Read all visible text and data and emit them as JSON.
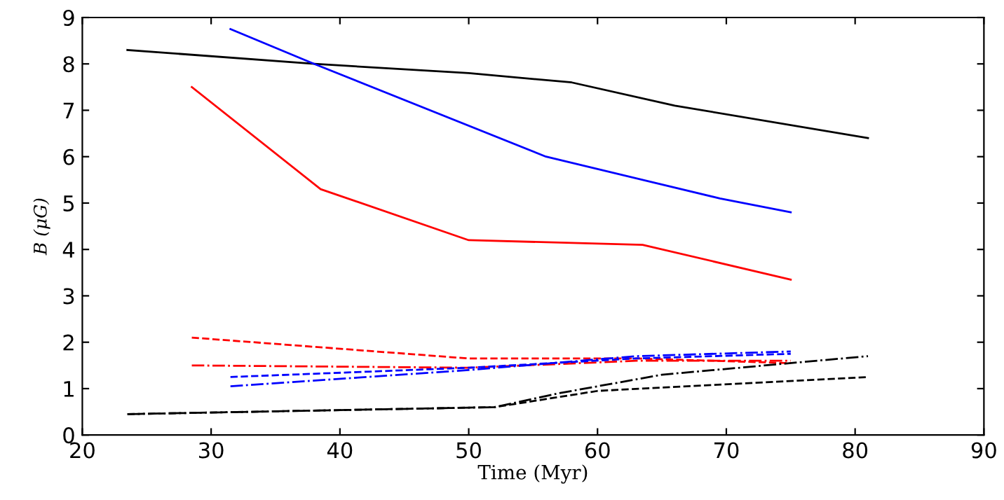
{
  "chart_data": {
    "type": "line",
    "xlabel": "Time (Myr)",
    "ylabel": "B (μG)",
    "xlim": [
      20,
      90
    ],
    "xticks": [
      20,
      30,
      40,
      50,
      60,
      70,
      80,
      90
    ],
    "ylim": [
      0,
      9
    ],
    "yticks": [
      0,
      1,
      2,
      3,
      4,
      5,
      6,
      7,
      8,
      9
    ],
    "grid": false,
    "legend": false,
    "series": [
      {
        "color": "#000000",
        "line_style": "solid",
        "x": [
          23.5,
          38,
          50,
          58,
          66,
          81
        ],
        "values": [
          8.3,
          8.0,
          7.8,
          7.6,
          7.1,
          6.4
        ]
      },
      {
        "color": "#0000ff",
        "line_style": "solid",
        "x": [
          31.5,
          38,
          56,
          69.5,
          75
        ],
        "values": [
          8.75,
          8.0,
          6.0,
          5.1,
          4.8
        ]
      },
      {
        "color": "#ff0000",
        "line_style": "solid",
        "x": [
          28.5,
          38.5,
          50,
          63.5,
          75
        ],
        "values": [
          7.5,
          5.3,
          4.2,
          4.1,
          3.35
        ]
      },
      {
        "color": "#ff0000",
        "line_style": "dashed",
        "x": [
          28.5,
          50,
          63,
          75
        ],
        "values": [
          2.1,
          1.65,
          1.65,
          1.55
        ]
      },
      {
        "color": "#ff0000",
        "line_style": "dashdot",
        "x": [
          28.5,
          50,
          63,
          75
        ],
        "values": [
          1.5,
          1.45,
          1.6,
          1.6
        ]
      },
      {
        "color": "#0000ff",
        "line_style": "dashed",
        "x": [
          31.5,
          50,
          63,
          75
        ],
        "values": [
          1.25,
          1.45,
          1.65,
          1.75
        ]
      },
      {
        "color": "#0000ff",
        "line_style": "dashdot",
        "x": [
          31.5,
          50,
          63,
          75
        ],
        "values": [
          1.05,
          1.4,
          1.7,
          1.8
        ]
      },
      {
        "color": "#000000",
        "line_style": "dashed",
        "x": [
          23.5,
          52,
          60,
          81
        ],
        "values": [
          0.45,
          0.6,
          0.95,
          1.25
        ]
      },
      {
        "color": "#000000",
        "line_style": "dashdot",
        "x": [
          23.5,
          52,
          57,
          65,
          81
        ],
        "values": [
          0.45,
          0.6,
          0.9,
          1.3,
          1.7
        ]
      }
    ]
  }
}
